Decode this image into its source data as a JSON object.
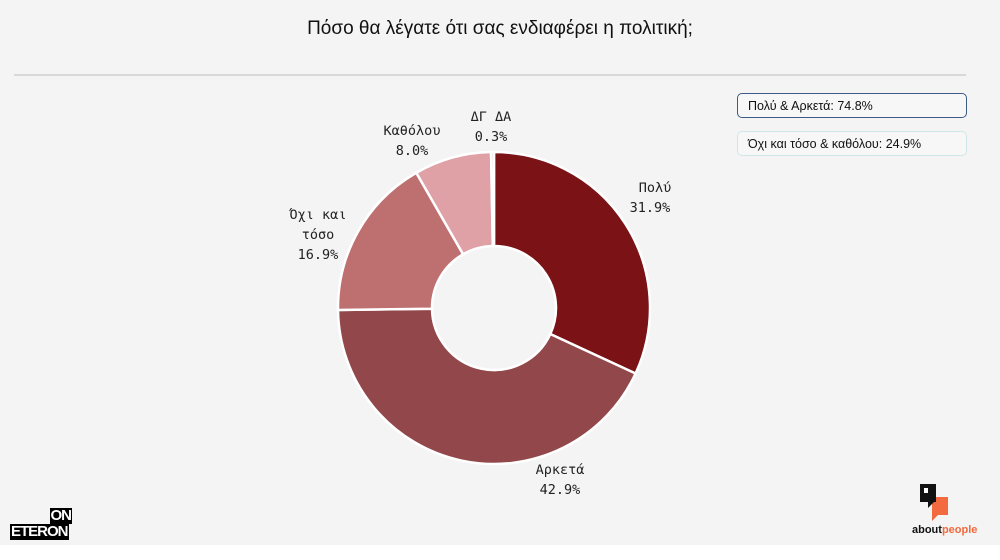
{
  "chart_data": {
    "type": "pie",
    "title": "Πόσο θα λέγατε ότι σας ενδιαφέρει η πολιτική;",
    "slices": [
      {
        "label": "Πολύ",
        "value": 31.9,
        "color": "#7a1216"
      },
      {
        "label": "Αρκετά",
        "value": 42.9,
        "color": "#92474a"
      },
      {
        "label": "Όχι και τόσο",
        "value": 16.9,
        "color": "#bd706f"
      },
      {
        "label": "Καθόλου",
        "value": 8.0,
        "color": "#dfa0a6"
      },
      {
        "label": "ΔΓ ΔΑ",
        "value": 0.3,
        "color": "#e8c0c4"
      }
    ],
    "value_labels": [
      "31.9%",
      "42.9%",
      "16.9%",
      "8.0%",
      "0.3%"
    ],
    "summary": [
      "Πολύ & Αρκετά: 74.8%",
      "Όχι και τόσο & καθόλου: 24.9%"
    ]
  },
  "logos": {
    "left_top": "ON",
    "left_bottom": "ETERON",
    "right_a": "about",
    "right_b": "people"
  }
}
